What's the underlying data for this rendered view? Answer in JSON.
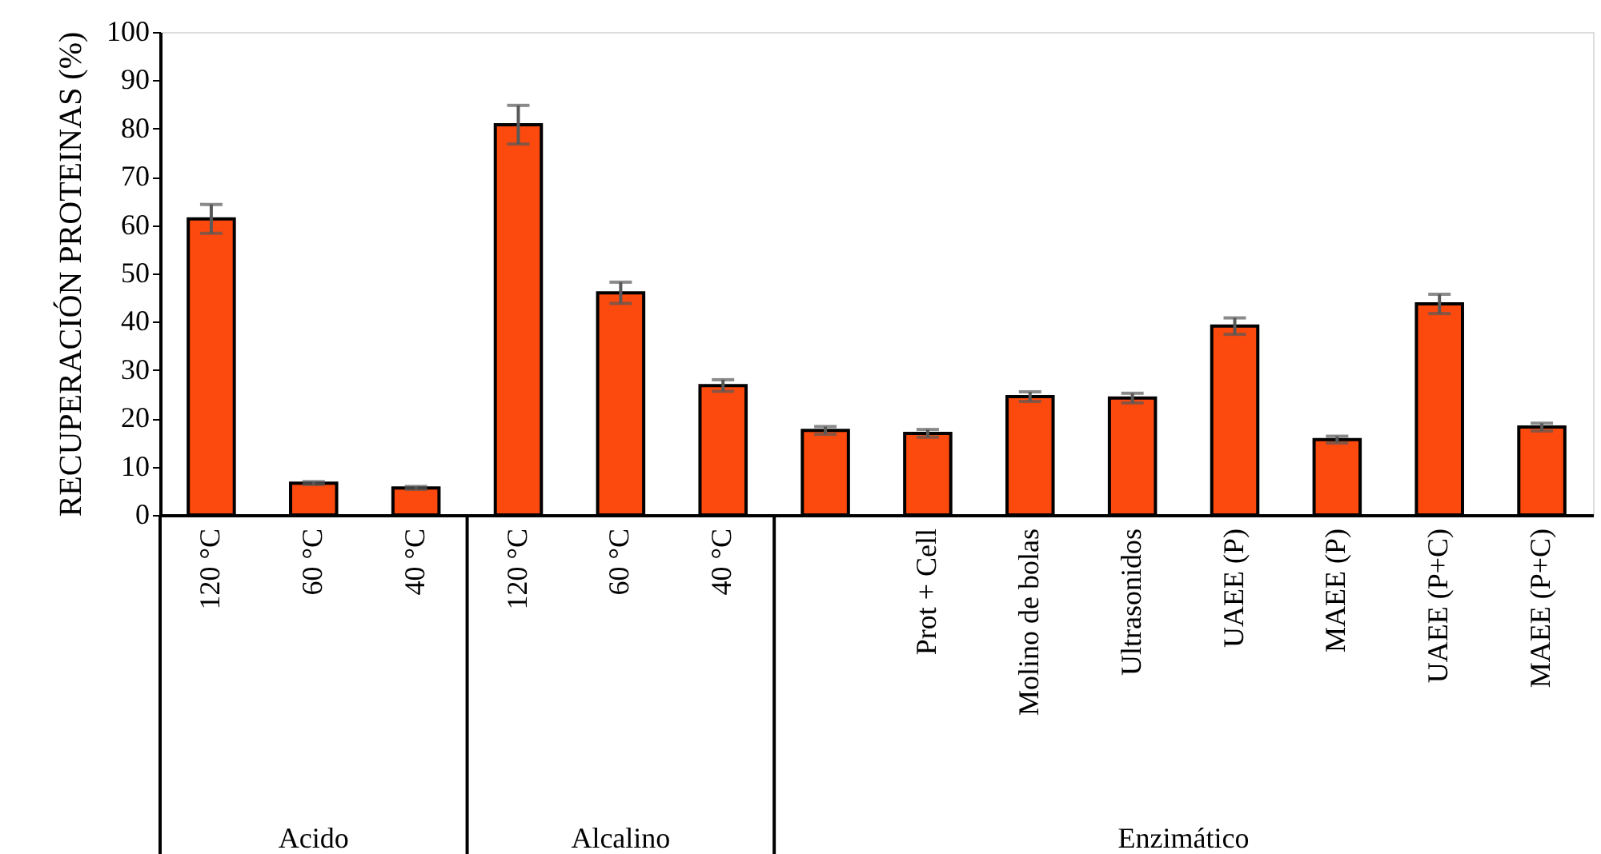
{
  "chart_data": {
    "type": "bar",
    "ylabel": "RECUPERACIÓN PROTEINAS (%)",
    "categories": [
      "120 °C",
      "60 °C",
      "40 °C",
      "120 °C",
      "60 °C",
      "40 °C",
      null,
      "Prot + Cell",
      "Molino de bolas",
      "Ultrasonidos",
      "UAEE (P)",
      "MAEE (P)",
      "UAEE (P+C)",
      "MAEE (P+C)"
    ],
    "values": [
      61.3,
      6.6,
      5.6,
      80.8,
      46,
      26.8,
      17.5,
      16.9,
      24.5,
      24.2,
      39.1,
      15.6,
      43.7,
      18.2
    ],
    "errors": [
      3,
      0.3,
      0.3,
      4,
      2.2,
      1.2,
      0.8,
      0.8,
      1,
      1,
      1.7,
      0.7,
      2,
      0.8
    ],
    "color": "#fc4a0e",
    "ylim": [
      0,
      100
    ],
    "yticks": [
      0,
      10,
      20,
      30,
      40,
      50,
      60,
      70,
      80,
      90,
      100
    ],
    "grid": false,
    "annotations": [
      "Acido",
      "Alcalino",
      "Enzimático"
    ]
  }
}
